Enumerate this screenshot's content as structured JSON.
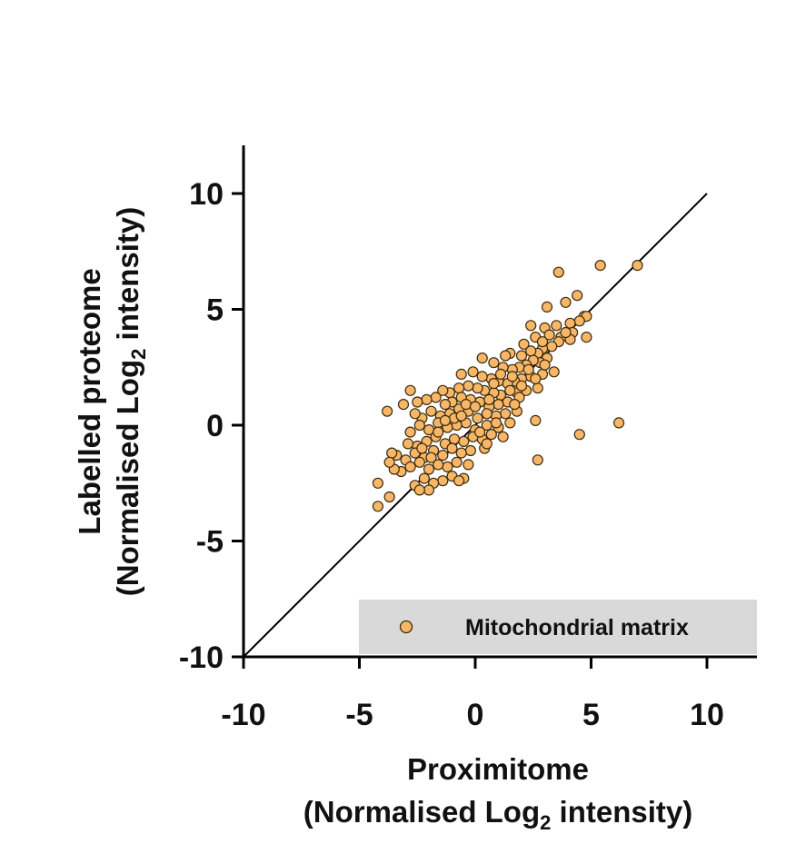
{
  "chart_data": {
    "type": "scatter",
    "xlabel_line1": "Proximitome",
    "xlabel_line2_pre": "(Normalised Log",
    "xlabel_line2_sub": "2",
    "xlabel_line2_post": " intensity)",
    "ylabel_line1": "Labelled proteome",
    "ylabel_line2_pre": "(Normalised Log",
    "ylabel_line2_sub": "2",
    "ylabel_line2_post": " intensity)",
    "xlim": [
      -10,
      12
    ],
    "ylim": [
      -10,
      12
    ],
    "x_ticks": [
      "-10",
      "-5",
      "0",
      "5",
      "10"
    ],
    "y_ticks": [
      "-10",
      "-5",
      "0",
      "5",
      "10"
    ],
    "reference_line": {
      "x": [
        -10,
        10
      ],
      "y": [
        -10,
        10
      ]
    },
    "legend_position": "bottom-right",
    "grid": false,
    "colors": {
      "marker_fill": "#F7B766",
      "marker_stroke": "#3a2a10",
      "legend_bg": "#d9d9d9"
    },
    "series": [
      {
        "name": "Mitochondrial matrix",
        "points": [
          [
            7.0,
            6.9
          ],
          [
            5.4,
            6.9
          ],
          [
            3.6,
            6.6
          ],
          [
            6.2,
            0.1
          ],
          [
            4.5,
            -0.4
          ],
          [
            2.7,
            -1.5
          ],
          [
            -4.2,
            -3.5
          ],
          [
            -3.7,
            -3.1
          ],
          [
            -4.2,
            -2.5
          ],
          [
            -3.8,
            0.6
          ],
          [
            -2.8,
            1.5
          ],
          [
            -3.1,
            0.9
          ],
          [
            4.4,
            5.6
          ],
          [
            3.9,
            5.3
          ],
          [
            3.1,
            5.1
          ],
          [
            4.7,
            4.7
          ],
          [
            4.8,
            4.7
          ],
          [
            4.5,
            4.5
          ],
          [
            4.1,
            4.4
          ],
          [
            3.5,
            4.3
          ],
          [
            3.0,
            4.2
          ],
          [
            2.4,
            4.3
          ],
          [
            4.2,
            4.0
          ],
          [
            3.7,
            3.8
          ],
          [
            3.2,
            3.9
          ],
          [
            2.6,
            3.8
          ],
          [
            2.1,
            3.5
          ],
          [
            4.8,
            3.8
          ],
          [
            4.1,
            3.7
          ],
          [
            3.6,
            3.6
          ],
          [
            3.3,
            3.4
          ],
          [
            2.9,
            3.3
          ],
          [
            2.7,
            3.1
          ],
          [
            2.4,
            3.2
          ],
          [
            2.0,
            3.0
          ],
          [
            1.5,
            3.1
          ],
          [
            1.3,
            3.0
          ],
          [
            3.1,
            2.9
          ],
          [
            2.8,
            2.7
          ],
          [
            2.5,
            2.8
          ],
          [
            2.2,
            2.6
          ],
          [
            1.9,
            2.5
          ],
          [
            1.6,
            2.4
          ],
          [
            1.2,
            2.5
          ],
          [
            0.8,
            2.7
          ],
          [
            0.3,
            2.9
          ],
          [
            3.4,
            2.3
          ],
          [
            2.9,
            2.2
          ],
          [
            2.4,
            2.1
          ],
          [
            2.0,
            2.0
          ],
          [
            1.7,
            1.9
          ],
          [
            1.4,
            1.8
          ],
          [
            1.0,
            1.9
          ],
          [
            0.7,
            2.0
          ],
          [
            0.3,
            2.1
          ],
          [
            -0.1,
            2.3
          ],
          [
            -0.6,
            2.2
          ],
          [
            2.7,
            1.6
          ],
          [
            2.2,
            1.5
          ],
          [
            1.8,
            1.4
          ],
          [
            1.5,
            1.5
          ],
          [
            1.1,
            1.3
          ],
          [
            0.8,
            1.4
          ],
          [
            0.4,
            1.5
          ],
          [
            0.1,
            1.6
          ],
          [
            -0.3,
            1.7
          ],
          [
            -0.7,
            1.6
          ],
          [
            -1.1,
            1.4
          ],
          [
            -1.4,
            1.5
          ],
          [
            1.4,
            1.0
          ],
          [
            1.0,
            0.9
          ],
          [
            0.6,
            0.8
          ],
          [
            0.2,
            1.0
          ],
          [
            -0.2,
            1.1
          ],
          [
            -0.6,
            1.2
          ],
          [
            -1.0,
            1.0
          ],
          [
            -1.3,
            0.9
          ],
          [
            -1.7,
            1.2
          ],
          [
            -2.1,
            1.1
          ],
          [
            -2.5,
            1.0
          ],
          [
            1.8,
            0.6
          ],
          [
            1.3,
            0.5
          ],
          [
            0.9,
            0.4
          ],
          [
            0.5,
            0.5
          ],
          [
            0.1,
            0.3
          ],
          [
            -0.3,
            0.6
          ],
          [
            -0.7,
            0.7
          ],
          [
            -1.1,
            0.5
          ],
          [
            -1.5,
            0.4
          ],
          [
            -1.9,
            0.6
          ],
          [
            -2.3,
            0.3
          ],
          [
            -2.6,
            0.5
          ],
          [
            2.6,
            0.2
          ],
          [
            1.5,
            0.1
          ],
          [
            1.0,
            -0.1
          ],
          [
            0.5,
            0.0
          ],
          [
            0.0,
            -0.2
          ],
          [
            -0.4,
            0.1
          ],
          [
            -0.8,
            0.0
          ],
          [
            -1.2,
            -0.1
          ],
          [
            -1.6,
            0.1
          ],
          [
            -2.0,
            -0.2
          ],
          [
            -2.4,
            0.0
          ],
          [
            -2.8,
            -0.3
          ],
          [
            1.2,
            -0.5
          ],
          [
            0.7,
            -0.4
          ],
          [
            0.3,
            -0.6
          ],
          [
            -0.1,
            -0.5
          ],
          [
            -0.5,
            -0.7
          ],
          [
            -0.9,
            -0.6
          ],
          [
            -1.3,
            -0.8
          ],
          [
            -1.7,
            -0.5
          ],
          [
            -2.1,
            -0.7
          ],
          [
            -2.5,
            -0.9
          ],
          [
            -2.9,
            -0.8
          ],
          [
            0.4,
            -1.0
          ],
          [
            -0.2,
            -1.1
          ],
          [
            -0.6,
            -1.2
          ],
          [
            -1.0,
            -1.0
          ],
          [
            -1.4,
            -1.3
          ],
          [
            -1.8,
            -1.1
          ],
          [
            -2.2,
            -1.4
          ],
          [
            -2.6,
            -1.2
          ],
          [
            -3.0,
            -1.5
          ],
          [
            -3.4,
            -1.3
          ],
          [
            -3.6,
            -1.2
          ],
          [
            -0.3,
            -1.7
          ],
          [
            -0.8,
            -1.6
          ],
          [
            -1.2,
            -1.8
          ],
          [
            -1.6,
            -1.7
          ],
          [
            -2.0,
            -1.9
          ],
          [
            -2.4,
            -1.6
          ],
          [
            -2.8,
            -1.8
          ],
          [
            -3.2,
            -2.0
          ],
          [
            -3.5,
            -1.9
          ],
          [
            -3.7,
            -1.6
          ],
          [
            -0.5,
            -2.3
          ],
          [
            -1.0,
            -2.2
          ],
          [
            -1.4,
            -2.4
          ],
          [
            -1.8,
            -2.5
          ],
          [
            -2.2,
            -2.3
          ],
          [
            -2.6,
            -2.6
          ],
          [
            -2.0,
            -2.8
          ],
          [
            -2.4,
            -2.8
          ],
          [
            -0.7,
            -2.4
          ],
          [
            0.8,
            1.8
          ],
          [
            1.6,
            2.1
          ],
          [
            2.3,
            2.4
          ],
          [
            2.0,
            1.7
          ],
          [
            0.6,
            1.1
          ],
          [
            -0.4,
            0.9
          ],
          [
            -0.9,
            0.3
          ],
          [
            0.2,
            -0.3
          ],
          [
            0.9,
            0.1
          ],
          [
            1.9,
            1.2
          ],
          [
            2.6,
            2.0
          ],
          [
            3.0,
            2.6
          ],
          [
            1.1,
            2.2
          ],
          [
            -1.6,
            -0.3
          ],
          [
            -1.9,
            -1.4
          ],
          [
            -0.6,
            0.4
          ],
          [
            0.0,
            0.8
          ],
          [
            1.7,
            0.9
          ],
          [
            0.5,
            -0.8
          ],
          [
            -1.3,
            0.2
          ],
          [
            -2.3,
            -1.0
          ],
          [
            2.9,
            3.6
          ],
          [
            3.9,
            4.0
          ]
        ]
      }
    ]
  }
}
